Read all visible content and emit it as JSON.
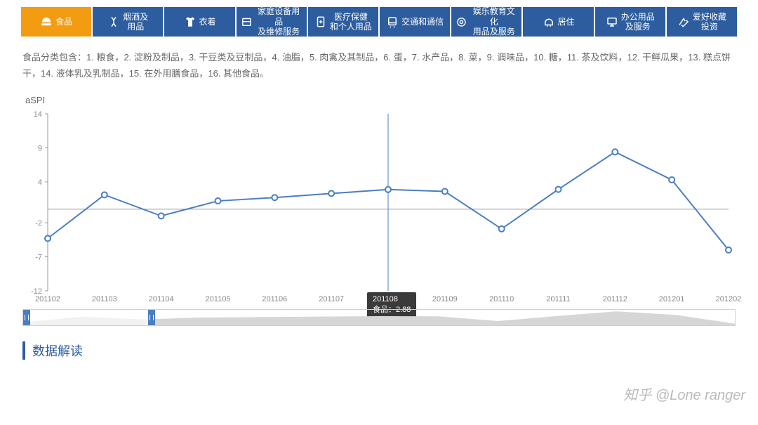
{
  "tabs": [
    {
      "id": "food",
      "label": "食品",
      "active": true
    },
    {
      "id": "tobacco",
      "label": "烟酒及\n用品",
      "active": false
    },
    {
      "id": "clothing",
      "label": "衣着",
      "active": false
    },
    {
      "id": "household",
      "label": "家庭设备用品\n及维修服务",
      "active": false
    },
    {
      "id": "medical",
      "label": "医疗保健\n和个人用品",
      "active": false
    },
    {
      "id": "transport",
      "label": "交通和通信",
      "active": false
    },
    {
      "id": "culture",
      "label": "娱乐教育文化\n用品及服务",
      "active": false
    },
    {
      "id": "housing",
      "label": "居住",
      "active": false
    },
    {
      "id": "office",
      "label": "办公用品\n及服务",
      "active": false
    },
    {
      "id": "hobby",
      "label": "爱好收藏\n投资",
      "active": false
    }
  ],
  "tab_colors": {
    "active_bg": "#f39c12",
    "inactive_bg": "#2d5d9e",
    "text": "#ffffff"
  },
  "description": "食品分类包含：1. 粮食，2. 淀粉及制品，3. 干豆类及豆制品，4. 油脂，5. 肉禽及其制品，6. 蛋，7. 水产品，8. 菜，9. 调味品，10. 糖，11. 茶及饮料，12. 干鲜瓜果，13. 糕点饼干，14. 液体乳及乳制品，15. 在外用膳食品，16. 其他食品。",
  "chart": {
    "type": "line",
    "title": "aSPI",
    "x_categories": [
      "201102",
      "201103",
      "201104",
      "201105",
      "201106",
      "201107",
      "201108",
      "201109",
      "201110",
      "201111",
      "201112",
      "201201",
      "201202"
    ],
    "series": {
      "name": "食品",
      "values": [
        -4.3,
        2.1,
        -1.0,
        1.2,
        1.7,
        2.3,
        2.88,
        2.6,
        -2.9,
        2.9,
        8.4,
        4.3,
        -6.0
      ],
      "line_color": "#4a7ec2",
      "marker_fill": "#ffffff",
      "marker_stroke": "#4a7ec2",
      "marker_radius": 4,
      "line_width": 2
    },
    "ylim": [
      -12,
      14
    ],
    "yticks": [
      -12,
      -7,
      -2,
      4,
      9,
      14
    ],
    "axis_color": "#999999",
    "grid_color": "#e6e6e6",
    "background": "#ffffff",
    "tick_fontsize": 11,
    "tick_color": "#888888",
    "hover": {
      "index": 6,
      "line1": "201108",
      "line2": "食品：2.88",
      "crosshair_color": "#4a7ec2"
    }
  },
  "range_selector": {
    "selected_start": 0.18,
    "selected_end": 1.0,
    "mini_fill": "#d6d6d6",
    "handle_color": "#4a7ec2"
  },
  "section_header": "数据解读",
  "accent_color": "#2d5d9e",
  "watermark": "知乎 @Lone ranger"
}
